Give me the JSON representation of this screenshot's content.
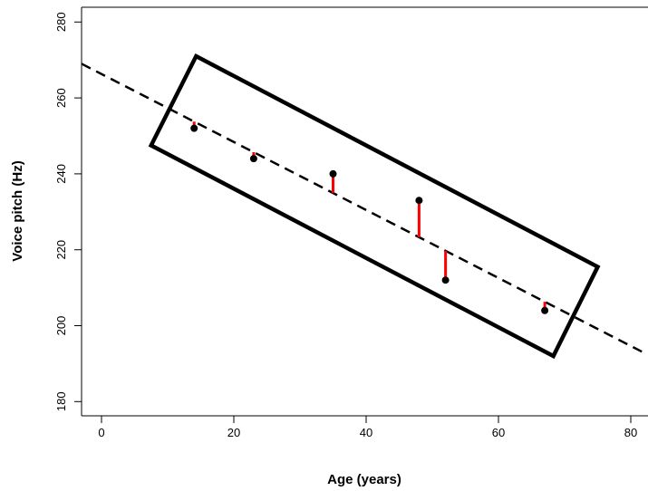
{
  "chart_data": {
    "type": "scatter",
    "title": "",
    "xlabel": "Age (years)",
    "ylabel": "Voice pitch (Hz)",
    "xlim": [
      -3,
      82
    ],
    "ylim": [
      176,
      284
    ],
    "xticks": [
      0,
      20,
      40,
      60,
      80
    ],
    "yticks": [
      180,
      200,
      220,
      240,
      260,
      280
    ],
    "grid": false,
    "legend": "none",
    "points": [
      {
        "x": 14,
        "y": 252
      },
      {
        "x": 23,
        "y": 244
      },
      {
        "x": 35,
        "y": 240
      },
      {
        "x": 48,
        "y": 233
      },
      {
        "x": 52,
        "y": 212
      },
      {
        "x": 67,
        "y": 204
      }
    ],
    "regression_line": {
      "intercept": 266.3,
      "slope": -0.8956,
      "style": "dashed"
    },
    "residual_color": "#ff0000",
    "highlight_box": {
      "corners": [
        [
          14.3,
          271
        ],
        [
          75,
          215.5
        ],
        [
          68.3,
          192
        ],
        [
          7.5,
          247.5
        ]
      ]
    }
  }
}
